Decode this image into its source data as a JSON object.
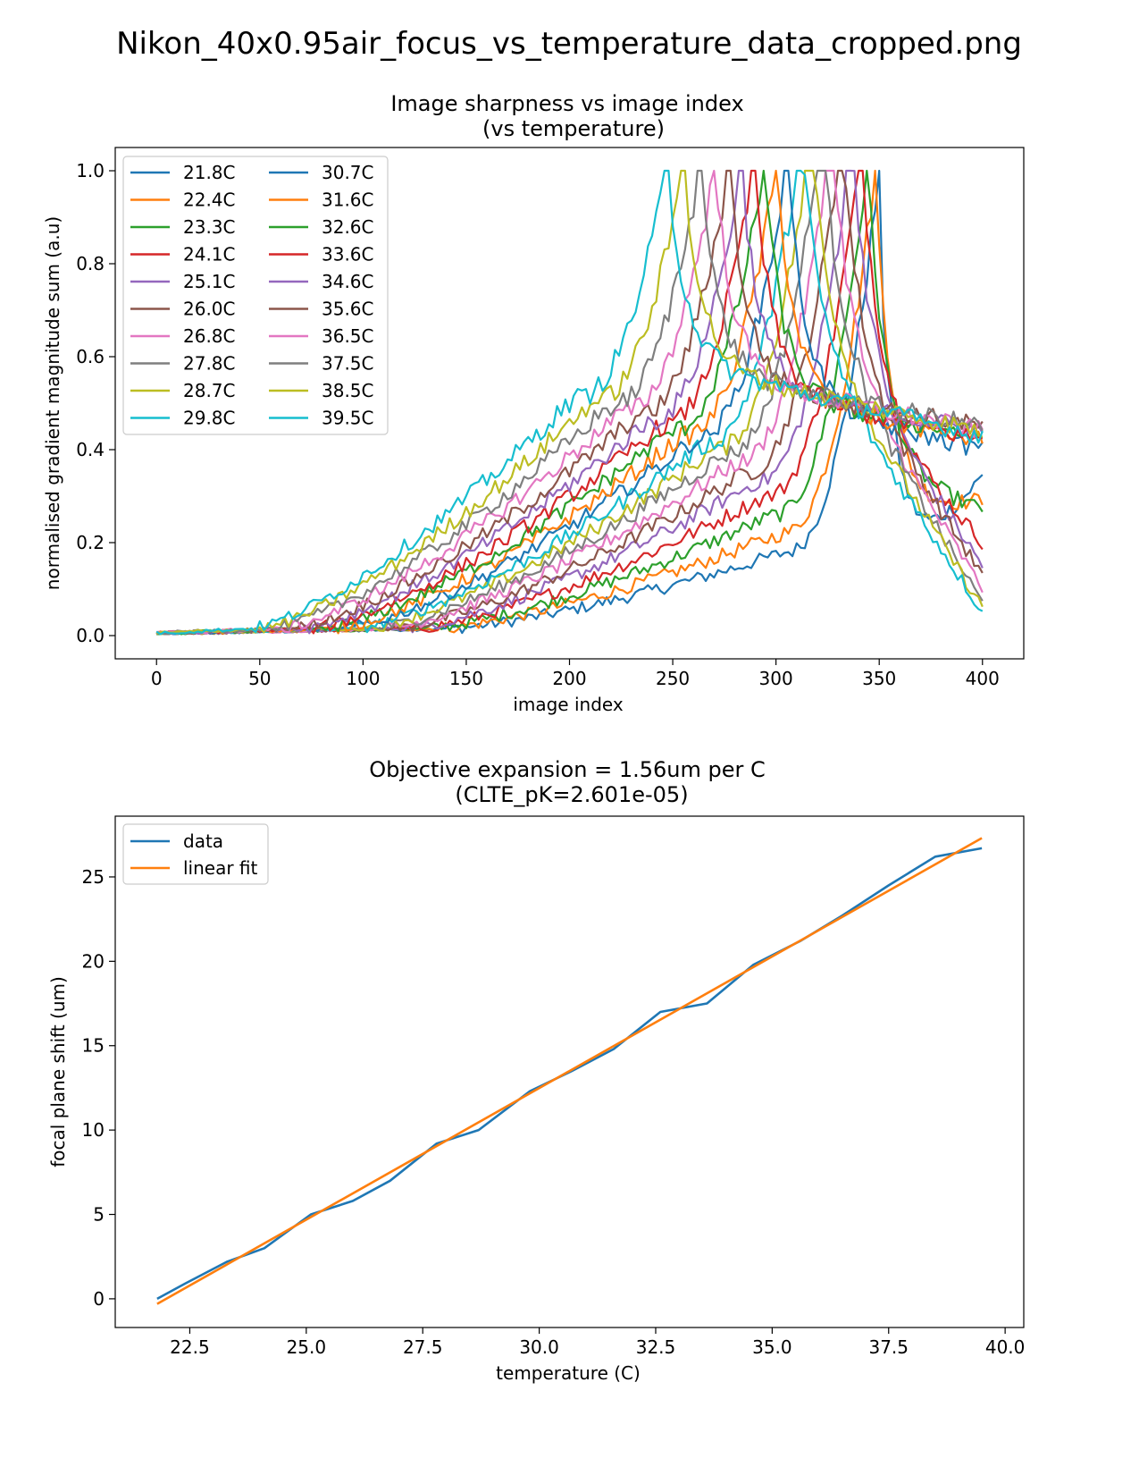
{
  "figure": {
    "title": "Nikon_40x0.95air_focus_vs_temperature_data_cropped.png"
  },
  "chart_data": [
    {
      "type": "line",
      "title": "Image sharpness vs image index",
      "subtitle": "(vs temperature)",
      "xlabel": "image index",
      "ylabel": "normalised gradient magnitude sum (a.u)",
      "xlim": [
        -20,
        420
      ],
      "ylim": [
        -0.05,
        1.05
      ],
      "xticks": [
        0,
        50,
        100,
        150,
        200,
        250,
        300,
        350,
        400
      ],
      "yticks": [
        0.0,
        0.2,
        0.4,
        0.6,
        0.8,
        1.0
      ],
      "grid": false,
      "legend_position": "top-left",
      "legend_columns": 2,
      "x_range": [
        0,
        400
      ],
      "series": [
        {
          "name": "21.8C",
          "color": "#1f77b4",
          "peak_index": 350,
          "left_tail_start": 140,
          "plateau": 0.18,
          "end_value": 0.34
        },
        {
          "name": "22.4C",
          "color": "#ff7f0e",
          "peak_index": 348,
          "left_tail_start": 135,
          "plateau": 0.22,
          "end_value": 0.29
        },
        {
          "name": "23.3C",
          "color": "#2ca02c",
          "peak_index": 344,
          "left_tail_start": 130,
          "plateau": 0.26,
          "end_value": 0.27
        },
        {
          "name": "24.1C",
          "color": "#d62728",
          "peak_index": 340,
          "left_tail_start": 125,
          "plateau": 0.3,
          "end_value": 0.2
        },
        {
          "name": "25.1C",
          "color": "#9467bd",
          "peak_index": 335,
          "left_tail_start": 120,
          "plateau": 0.33,
          "end_value": 0.15
        },
        {
          "name": "26.0C",
          "color": "#8c564b",
          "peak_index": 330,
          "left_tail_start": 115,
          "plateau": 0.35,
          "end_value": 0.13
        },
        {
          "name": "26.8C",
          "color": "#e377c2",
          "peak_index": 325,
          "left_tail_start": 110,
          "plateau": 0.37,
          "end_value": 0.1
        },
        {
          "name": "27.8C",
          "color": "#7f7f7f",
          "peak_index": 320,
          "left_tail_start": 105,
          "plateau": 0.39,
          "end_value": 0.07
        },
        {
          "name": "28.7C",
          "color": "#bcbd22",
          "peak_index": 315,
          "left_tail_start": 100,
          "plateau": 0.4,
          "end_value": 0.06
        },
        {
          "name": "29.8C",
          "color": "#17becf",
          "peak_index": 310,
          "left_tail_start": 95,
          "plateau": 0.41,
          "end_value": 0.05
        },
        {
          "name": "30.7C",
          "color": "#1f77b4",
          "peak_index": 305,
          "left_tail_start": 90,
          "plateau": 0.42,
          "end_value": 0.4
        },
        {
          "name": "31.6C",
          "color": "#ff7f0e",
          "peak_index": 300,
          "left_tail_start": 85,
          "plateau": 0.43,
          "end_value": 0.42
        },
        {
          "name": "32.6C",
          "color": "#2ca02c",
          "peak_index": 294,
          "left_tail_start": 80,
          "plateau": 0.44,
          "end_value": 0.43
        },
        {
          "name": "33.6C",
          "color": "#d62728",
          "peak_index": 289,
          "left_tail_start": 75,
          "plateau": 0.45,
          "end_value": 0.42
        },
        {
          "name": "34.6C",
          "color": "#9467bd",
          "peak_index": 283,
          "left_tail_start": 70,
          "plateau": 0.46,
          "end_value": 0.44
        },
        {
          "name": "35.6C",
          "color": "#8c564b",
          "peak_index": 277,
          "left_tail_start": 65,
          "plateau": 0.47,
          "end_value": 0.45
        },
        {
          "name": "36.5C",
          "color": "#e377c2",
          "peak_index": 270,
          "left_tail_start": 60,
          "plateau": 0.48,
          "end_value": 0.44
        },
        {
          "name": "37.5C",
          "color": "#7f7f7f",
          "peak_index": 263,
          "left_tail_start": 55,
          "plateau": 0.49,
          "end_value": 0.45
        },
        {
          "name": "38.5C",
          "color": "#bcbd22",
          "peak_index": 255,
          "left_tail_start": 50,
          "plateau": 0.5,
          "end_value": 0.44
        },
        {
          "name": "39.5C",
          "color": "#17becf",
          "peak_index": 247,
          "left_tail_start": 45,
          "plateau": 0.51,
          "end_value": 0.43
        }
      ]
    },
    {
      "type": "line",
      "title": "Objective expansion = 1.56um per C",
      "subtitle": "(CLTE_pK=2.601e-05)",
      "xlabel": "temperature (C)",
      "ylabel": "focal plane shift (um)",
      "xlim": [
        20.9,
        40.4
      ],
      "ylim": [
        -1.7,
        28.6
      ],
      "xticks": [
        22.5,
        25.0,
        27.5,
        30.0,
        32.5,
        35.0,
        37.5,
        40.0
      ],
      "yticks": [
        0,
        5,
        10,
        15,
        20,
        25
      ],
      "grid": false,
      "legend_position": "top-left",
      "series": [
        {
          "name": "data",
          "color": "#1f77b4",
          "x": [
            21.8,
            22.4,
            23.3,
            24.1,
            25.1,
            26.0,
            26.8,
            27.8,
            28.7,
            29.8,
            30.7,
            31.6,
            32.6,
            33.6,
            34.6,
            35.6,
            36.5,
            37.5,
            38.5,
            39.5
          ],
          "y": [
            0.0,
            0.9,
            2.2,
            3.0,
            5.0,
            5.8,
            7.0,
            9.2,
            10.0,
            12.3,
            13.5,
            14.8,
            17.0,
            17.5,
            19.8,
            21.2,
            22.7,
            24.5,
            26.2,
            26.7
          ]
        },
        {
          "name": "linear fit",
          "color": "#ff7f0e",
          "x": [
            21.8,
            39.5
          ],
          "y": [
            -0.3,
            27.3
          ]
        }
      ]
    }
  ]
}
